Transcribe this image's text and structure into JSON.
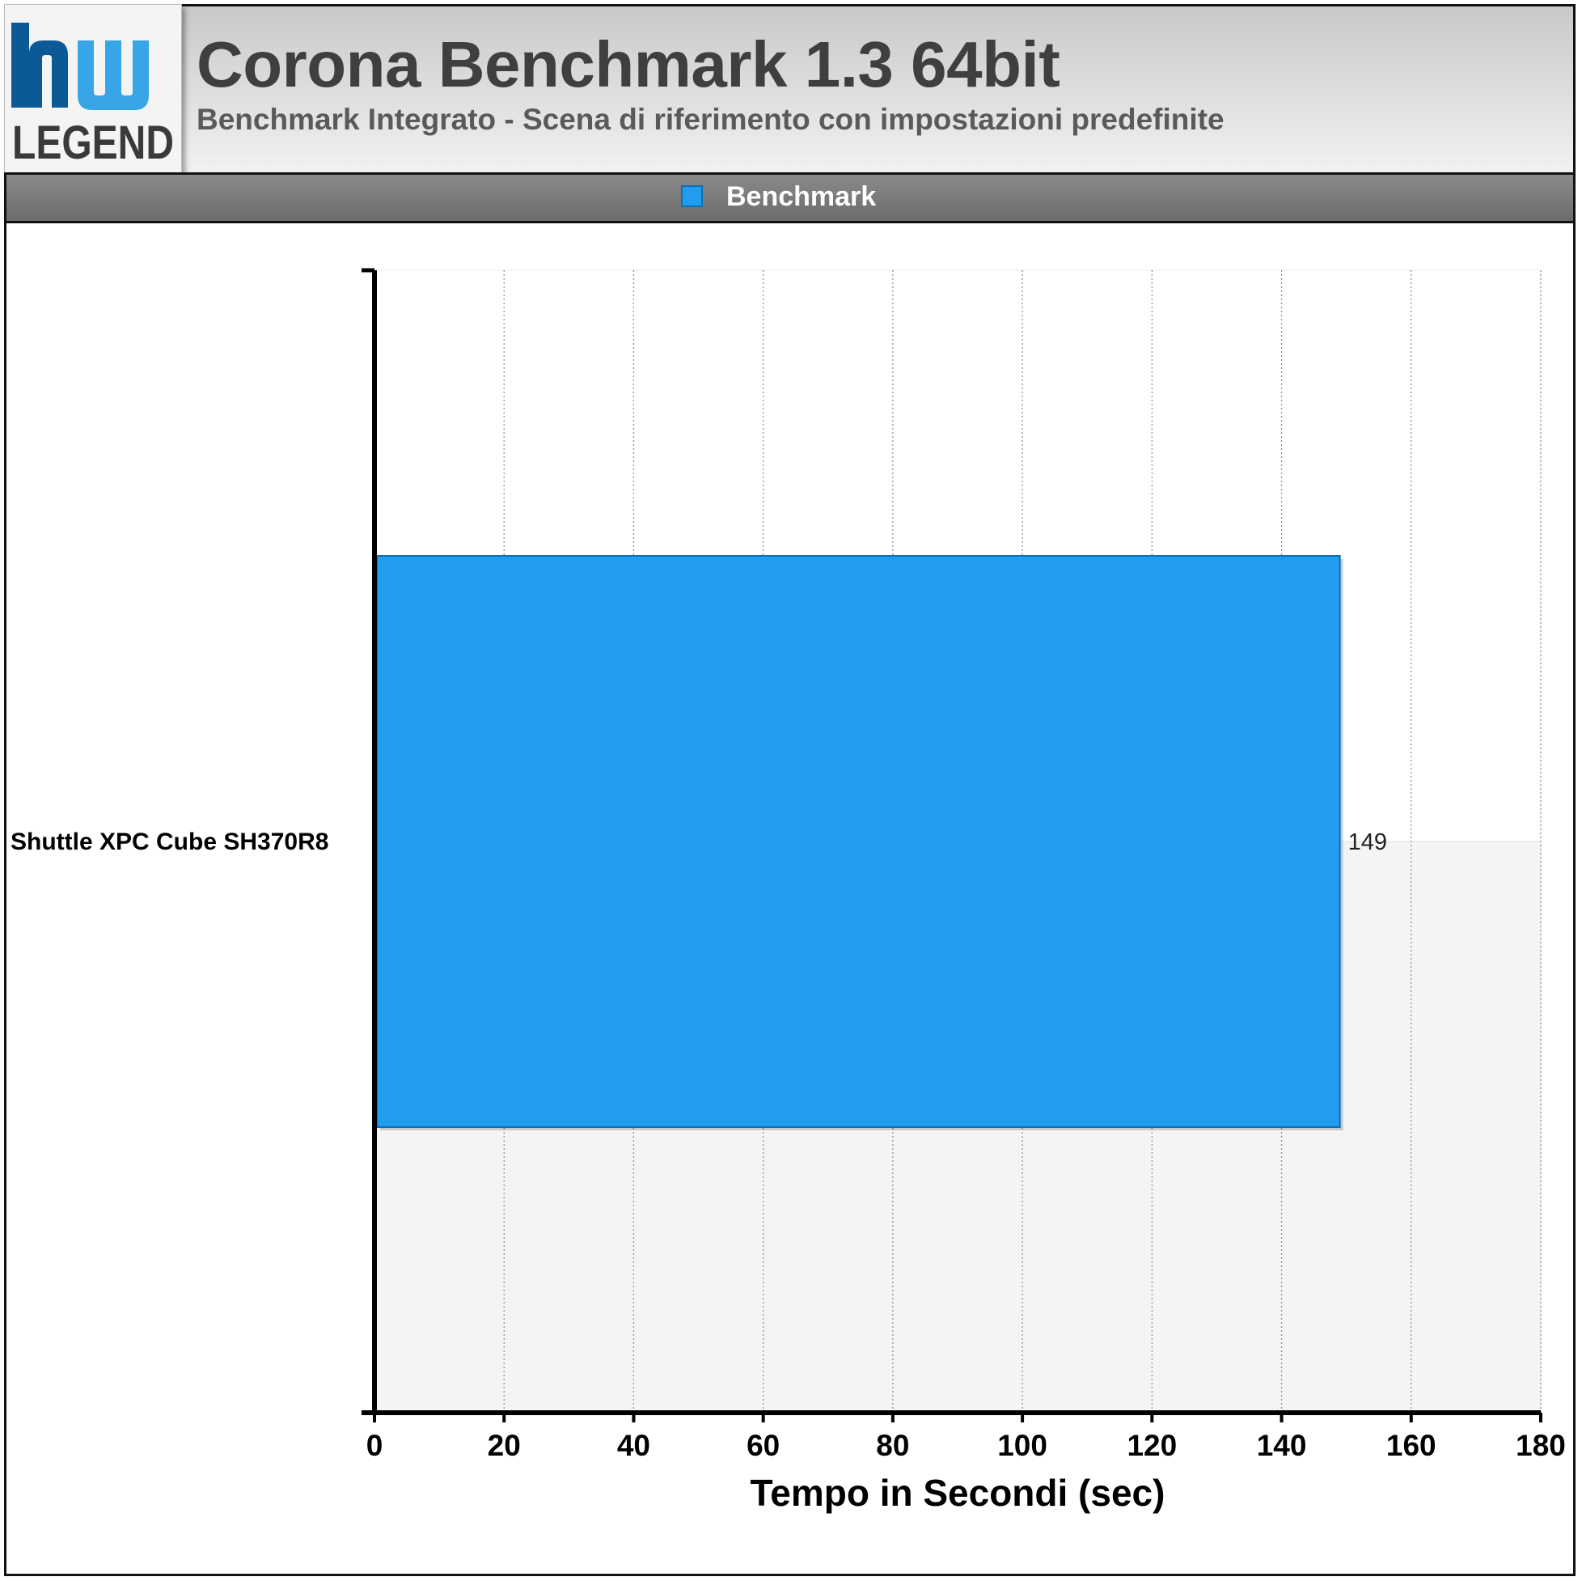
{
  "header": {
    "title": "Corona Benchmark 1.3 64bit",
    "subtitle": "Benchmark Integrato - Scena di riferimento con impostazioni predefinite",
    "logo_text": "LEGEND"
  },
  "colors": {
    "series": "#219ded",
    "series_border": "#0d6fb8",
    "logo_dark": "#0b5a96",
    "logo_light": "#38a6e6"
  },
  "chart_data": {
    "type": "bar",
    "orientation": "horizontal",
    "title": "Corona Benchmark 1.3 64bit",
    "subtitle": "Benchmark Integrato - Scena di riferimento con impostazioni predefinite",
    "categories": [
      "Shuttle XPC Cube SH370R8"
    ],
    "series": [
      {
        "name": "Benchmark",
        "values": [
          149
        ]
      }
    ],
    "data_labels": [
      "149"
    ],
    "xlabel": "Tempo in Secondi (sec)",
    "ylabel": "",
    "xlim": [
      0,
      180
    ],
    "xticks": [
      0,
      20,
      40,
      60,
      80,
      100,
      120,
      140,
      160,
      180
    ],
    "grid": "vertical dotted",
    "legend_position": "top-center"
  }
}
